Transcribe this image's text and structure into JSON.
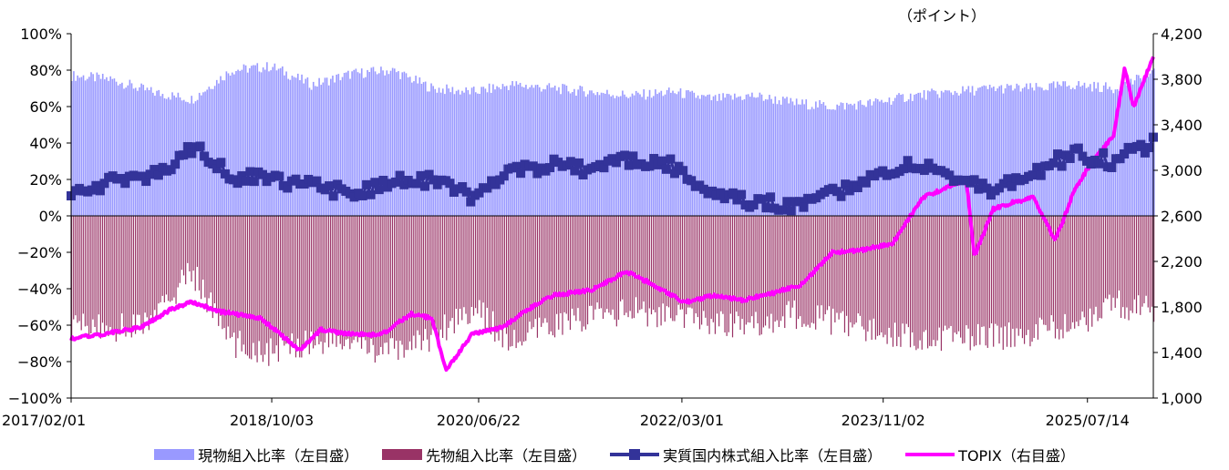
{
  "unit_label": "（ポイント）",
  "colors": {
    "spot": "#9999ff",
    "futures": "#993366",
    "real": "#333399",
    "topix": "#ff00ff"
  },
  "legend": {
    "spot": "現物組入比率（左目盛）",
    "futures": "先物組入比率（左目盛）",
    "real": "実質国内株式組入比率（左目盛）",
    "topix": "TOPIX（右目盛）"
  },
  "chart_data": {
    "type": "bar",
    "x_ticks": [
      "2017/02/01",
      "2018/10/03",
      "2020/06/22",
      "2022/03/01",
      "2023/11/02",
      "2025/07/14"
    ],
    "x_range": [
      "2017/02/01",
      "2026/01/30"
    ],
    "y_left_ticks": [
      "100%",
      "80%",
      "60%",
      "40%",
      "20%",
      "0%",
      "−20%",
      "−40%",
      "−60%",
      "−80%",
      "−100%"
    ],
    "y_left_range": [
      -100,
      100
    ],
    "y_right_ticks": [
      "4,200",
      "3,800",
      "3,400",
      "3,000",
      "2,600",
      "2,200",
      "1,800",
      "1,400",
      "1,000"
    ],
    "y_right_range": [
      1000,
      4200
    ],
    "series": [
      {
        "name": "現物組入比率（左目盛）",
        "axis": "left",
        "x": [
          "2017/02/01",
          "2017/06/01",
          "2017/10/01",
          "2018/02/01",
          "2018/06/01",
          "2018/10/01",
          "2019/02/01",
          "2019/06/01",
          "2019/10/01",
          "2020/02/01",
          "2020/06/01",
          "2020/10/01",
          "2021/02/01",
          "2021/06/01",
          "2021/10/01",
          "2022/02/01",
          "2022/06/01",
          "2022/10/01",
          "2023/02/01",
          "2023/06/01",
          "2023/10/01",
          "2024/02/01",
          "2024/06/01",
          "2024/10/01",
          "2025/02/01",
          "2025/06/01",
          "2025/10/01",
          "2026/01/30"
        ],
        "values": [
          77,
          75,
          68,
          64,
          80,
          82,
          72,
          78,
          80,
          70,
          68,
          72,
          70,
          68,
          66,
          68,
          64,
          66,
          62,
          60,
          62,
          66,
          68,
          70,
          70,
          72,
          70,
          78
        ]
      },
      {
        "name": "先物組入比率（左目盛）",
        "axis": "left",
        "x": [
          "2017/02/01",
          "2017/06/01",
          "2017/10/01",
          "2018/02/01",
          "2018/06/01",
          "2018/10/01",
          "2019/02/01",
          "2019/06/01",
          "2019/10/01",
          "2020/02/01",
          "2020/06/01",
          "2020/10/01",
          "2021/02/01",
          "2021/06/01",
          "2021/10/01",
          "2022/02/01",
          "2022/06/01",
          "2022/10/01",
          "2023/02/01",
          "2023/06/01",
          "2023/10/01",
          "2024/02/01",
          "2024/06/01",
          "2024/10/01",
          "2025/02/01",
          "2025/06/01",
          "2025/10/01",
          "2026/01/30"
        ],
        "values": [
          -60,
          -62,
          -58,
          -30,
          -70,
          -75,
          -68,
          -70,
          -75,
          -66,
          -50,
          -70,
          -60,
          -55,
          -52,
          -56,
          -58,
          -60,
          -54,
          -58,
          -62,
          -66,
          -68,
          -66,
          -64,
          -60,
          -48,
          -52
        ]
      },
      {
        "name": "実質国内株式組入比率（左目盛）",
        "axis": "left",
        "x": [
          "2017/02/01",
          "2017/06/01",
          "2017/10/01",
          "2018/02/01",
          "2018/06/01",
          "2018/10/01",
          "2019/02/01",
          "2019/06/01",
          "2019/10/01",
          "2020/02/01",
          "2020/06/01",
          "2020/10/01",
          "2021/02/01",
          "2021/06/01",
          "2021/10/01",
          "2022/02/01",
          "2022/06/01",
          "2022/10/01",
          "2023/02/01",
          "2023/06/01",
          "2023/10/01",
          "2024/02/01",
          "2024/06/01",
          "2024/10/01",
          "2025/02/01",
          "2025/06/01",
          "2025/10/01",
          "2026/01/30"
        ],
        "values": [
          15,
          18,
          20,
          38,
          22,
          20,
          16,
          12,
          18,
          20,
          10,
          24,
          28,
          26,
          32,
          28,
          12,
          8,
          6,
          12,
          20,
          30,
          22,
          14,
          24,
          34,
          30,
          40
        ]
      },
      {
        "name": "TOPIX（右目盛）",
        "axis": "right",
        "x": [
          "2017/02/01",
          "2017/05/01",
          "2017/09/01",
          "2017/12/01",
          "2018/02/01",
          "2018/05/01",
          "2018/09/01",
          "2018/12/25",
          "2019/03/01",
          "2019/06/01",
          "2019/09/01",
          "2019/12/01",
          "2020/02/01",
          "2020/03/16",
          "2020/06/01",
          "2020/09/01",
          "2020/12/01",
          "2021/02/01",
          "2021/06/01",
          "2021/09/14",
          "2021/12/01",
          "2022/03/08",
          "2022/06/01",
          "2022/09/01",
          "2022/12/01",
          "2023/03/01",
          "2023/06/01",
          "2023/09/01",
          "2023/12/01",
          "2024/03/01",
          "2024/07/11",
          "2024/08/05",
          "2024/10/01",
          "2024/12/01",
          "2025/02/01",
          "2025/04/07",
          "2025/06/01",
          "2025/08/01",
          "2025/10/01",
          "2025/11/04",
          "2025/12/01",
          "2026/01/30"
        ],
        "values": [
          1520,
          1560,
          1620,
          1780,
          1840,
          1760,
          1700,
          1420,
          1600,
          1560,
          1560,
          1740,
          1700,
          1240,
          1560,
          1620,
          1800,
          1900,
          1950,
          2110,
          2000,
          1840,
          1900,
          1860,
          1920,
          2000,
          2280,
          2300,
          2360,
          2760,
          2920,
          2240,
          2660,
          2720,
          2760,
          2380,
          2800,
          3100,
          3300,
          3900,
          3550,
          4000
        ]
      }
    ]
  }
}
